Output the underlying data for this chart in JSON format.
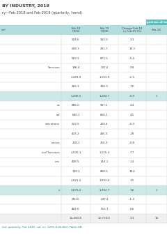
{
  "title": "BY INDUSTRY, 2019",
  "subtitle": "ry—Feb 2018 and Feb 2019 (quarterly, trend)",
  "header_col1": "on)",
  "header_feb18": "Feb-18\n('000)",
  "header_feb19": "Feb-19\n('000)",
  "header_change": "Change Feb-18\nto Feb-19 (%)",
  "header_prop": "Proportion of total",
  "header_prop_feb18": "Feb-18",
  "rows": [
    {
      "label": "",
      "feb18": "324.6",
      "feb19": "332.0",
      "change": "2.3",
      "highlight": false,
      "is_total": false
    },
    {
      "label": "",
      "feb18": "228.3",
      "feb19": "251.7",
      "change": "10.3",
      "highlight": false,
      "is_total": false
    },
    {
      "label": "",
      "feb18": "922.2",
      "feb19": "872.5",
      "change": "-5.4",
      "highlight": false,
      "is_total": false
    },
    {
      "label": "Services",
      "feb18": "146.4",
      "feb19": "147.6",
      "change": "0.8",
      "highlight": false,
      "is_total": false
    },
    {
      "label": "",
      "feb18": "1,183.9",
      "feb19": "1,153.9",
      "change": "-2.5",
      "highlight": false,
      "is_total": false
    },
    {
      "label": "",
      "feb18": "365.3",
      "feb19": "390.9",
      "change": "7.0",
      "highlight": false,
      "is_total": false
    },
    {
      "label": "",
      "feb18": "1,296.5",
      "feb19": "1,284.7",
      "change": "-0.9",
      "highlight": true,
      "is_total": false
    },
    {
      "label": "es",
      "feb18": "886.0",
      "feb19": "907.1",
      "change": "2.4",
      "highlight": false,
      "is_total": false
    },
    {
      "label": "ral",
      "feb18": "640.1",
      "feb19": "666.1",
      "change": "4.1",
      "highlight": false,
      "is_total": false
    },
    {
      "label": "unications",
      "feb18": "222.5",
      "feb19": "220.4",
      "change": "-0.9",
      "highlight": false,
      "is_total": false
    },
    {
      "label": "",
      "feb18": "433.2",
      "feb19": "445.5",
      "change": "2.8",
      "highlight": false,
      "is_total": false
    },
    {
      "label": "rvices",
      "feb18": "218.1",
      "feb19": "216.3",
      "change": "-0.8",
      "highlight": false,
      "is_total": false
    },
    {
      "label": "ical Services",
      "feb18": "1,035.1",
      "feb19": "1,115.3",
      "change": "7.7",
      "highlight": false,
      "is_total": false
    },
    {
      "label": "ces",
      "feb18": "408.5",
      "feb19": "414.1",
      "change": "1.4",
      "highlight": false,
      "is_total": false
    },
    {
      "label": "",
      "feb18": "749.3",
      "feb19": "858.5",
      "change": "14.6",
      "highlight": false,
      "is_total": false
    },
    {
      "label": "",
      "feb18": "1,021.5",
      "feb19": "1,032.4",
      "change": "1.1",
      "highlight": false,
      "is_total": false
    },
    {
      "label": "e",
      "feb18": "1,675.2",
      "feb19": "1,702.7",
      "change": "1.6",
      "highlight": true,
      "is_total": false
    },
    {
      "label": "",
      "feb18": "250.6",
      "feb19": "247.4",
      "change": "-1.3",
      "highlight": false,
      "is_total": false
    },
    {
      "label": "",
      "feb18": "483.6",
      "feb19": "515.7",
      "change": "6.6",
      "highlight": false,
      "is_total": false
    },
    {
      "label": "",
      "feb18": "12,490.8",
      "feb19": "12,774.6",
      "change": "2.3",
      "highlight": false,
      "is_total": true
    }
  ],
  "footer": "led, quarterly, Feb 2019, cat. no. 6291.0.55.003 (Table 04)",
  "prop_values": [
    "",
    "",
    "",
    "",
    "",
    "",
    "1",
    "",
    "",
    "",
    "",
    "",
    "",
    "",
    "",
    "",
    "1",
    "",
    "",
    "10"
  ],
  "col_teal_dark": "#5bbfbf",
  "col_teal_mid": "#7fcece",
  "col_teal_light": "#b2dede",
  "col_row_hi": "#cce8e8",
  "col_white": "#ffffff",
  "col_gray_line": "#cccccc",
  "col_dark_text": "#404040",
  "col_teal_text": "#2a8a8a",
  "col_total_bg": "#f0f0f0"
}
